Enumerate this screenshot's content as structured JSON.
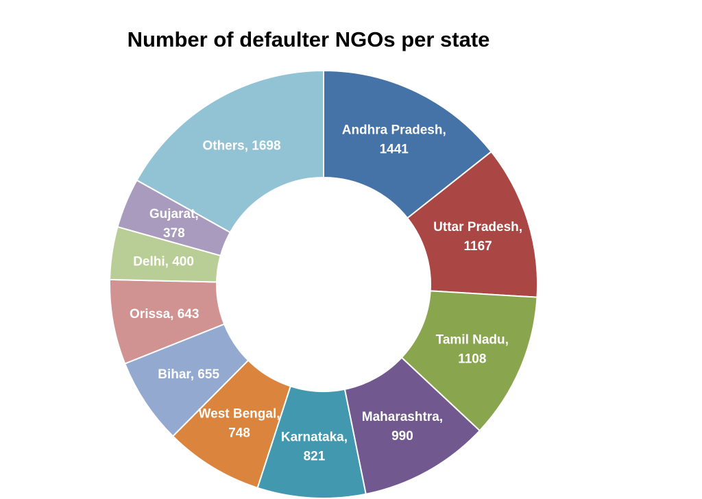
{
  "chart_data": {
    "type": "pie",
    "title": "Number of defaulter NGOs per state",
    "hole": true,
    "categories": [
      "Andhra Pradesh",
      "Uttar Pradesh",
      "Tamil Nadu",
      "Maharashtra",
      "Karnataka",
      "West Bengal",
      "Bihar",
      "Orissa",
      "Delhi",
      "Gujarat",
      "Others"
    ],
    "values": [
      1441,
      1167,
      1108,
      990,
      821,
      748,
      655,
      643,
      400,
      378,
      1698
    ],
    "colors": [
      "#4572A7",
      "#AA4643",
      "#89A54E",
      "#71588F",
      "#4198AF",
      "#DB843D",
      "#93A9CF",
      "#D19392",
      "#B9CD96",
      "#A99BBD",
      "#92C3D4"
    ],
    "data_labels": [
      [
        "Andhra Pradesh,",
        "1441"
      ],
      [
        "Uttar Pradesh,",
        "1167"
      ],
      [
        "Tamil Nadu,",
        "1108"
      ],
      [
        "Maharashtra,",
        "990"
      ],
      [
        "Karnataka,",
        "821"
      ],
      [
        "West Bengal,",
        "748"
      ],
      [
        "Bihar, 655"
      ],
      [
        "Orissa, 643"
      ],
      [
        "Delhi, 400"
      ],
      [
        "Gujarat,",
        "378"
      ],
      [
        "Others, 1698"
      ]
    ],
    "legend": "none"
  }
}
